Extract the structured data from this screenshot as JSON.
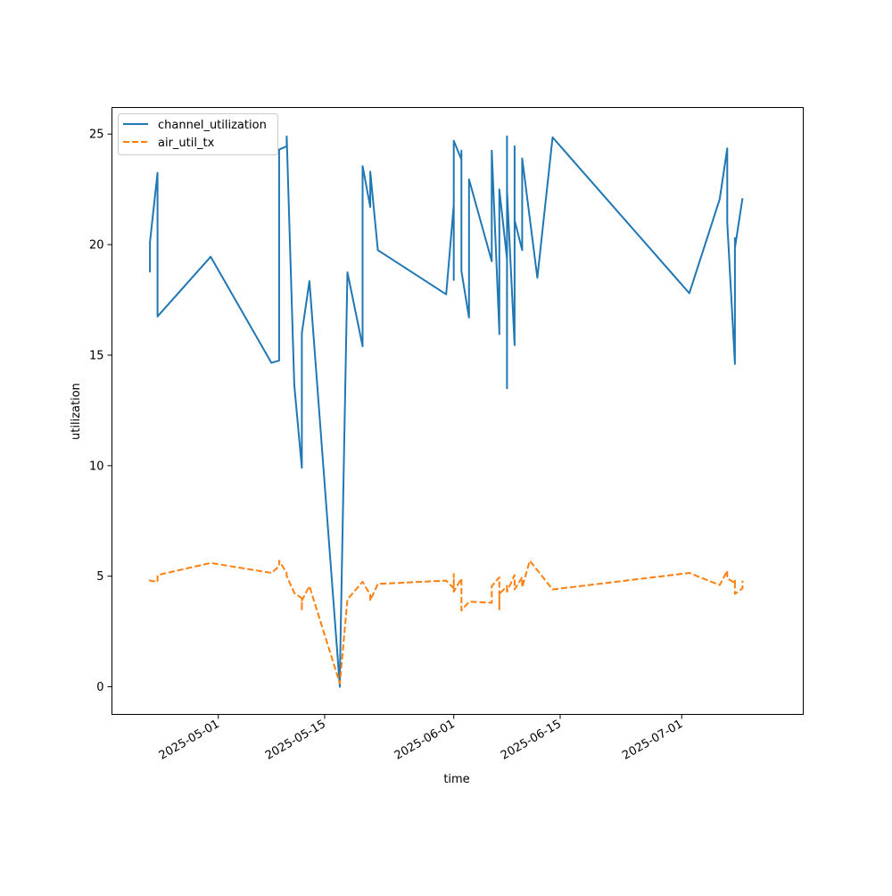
{
  "chart_data": {
    "type": "line",
    "title": "",
    "xlabel": "time",
    "ylabel": "utilization",
    "x_type": "date",
    "xlim": [
      "2025-04-17",
      "2025-07-17"
    ],
    "ylim": [
      -1.25,
      26.2
    ],
    "x_ticks": [
      "2025-05-01",
      "2025-05-15",
      "2025-06-01",
      "2025-06-15",
      "2025-07-01"
    ],
    "x_tick_labels": [
      "2025-05-01",
      "2025-05-15",
      "2025-06-01",
      "2025-06-15",
      "2025-07-01"
    ],
    "y_ticks": [
      0,
      5,
      10,
      15,
      20,
      25
    ],
    "y_tick_labels": [
      "0",
      "5",
      "10",
      "15",
      "20",
      "25"
    ],
    "grid": false,
    "legend_position": "upper-left",
    "series": [
      {
        "name": "channel_utilization",
        "color": "#1f77b4",
        "dash": "solid",
        "points": [
          [
            "2025-04-22",
            18.75
          ],
          [
            "2025-04-22",
            20.1
          ],
          [
            "2025-04-23",
            23.25
          ],
          [
            "2025-04-23",
            16.75
          ],
          [
            "2025-04-30",
            19.45
          ],
          [
            "2025-05-08",
            14.65
          ],
          [
            "2025-05-09",
            14.75
          ],
          [
            "2025-05-09",
            24.3
          ],
          [
            "2025-05-10",
            24.45
          ],
          [
            "2025-05-10",
            24.9
          ],
          [
            "2025-05-11",
            13.65
          ],
          [
            "2025-05-12",
            9.9
          ],
          [
            "2025-05-12",
            14.2
          ],
          [
            "2025-05-12",
            16.0
          ],
          [
            "2025-05-13",
            18.35
          ],
          [
            "2025-05-17",
            0.0
          ],
          [
            "2025-05-17",
            0.5
          ],
          [
            "2025-05-18",
            18.75
          ],
          [
            "2025-05-20",
            15.4
          ],
          [
            "2025-05-20",
            23.55
          ],
          [
            "2025-05-21",
            21.7
          ],
          [
            "2025-05-21",
            23.3
          ],
          [
            "2025-05-22",
            19.75
          ],
          [
            "2025-05-31",
            17.75
          ],
          [
            "2025-06-01",
            21.8
          ],
          [
            "2025-06-01",
            18.4
          ],
          [
            "2025-06-01",
            24.7
          ],
          [
            "2025-06-02",
            23.85
          ],
          [
            "2025-06-02",
            24.25
          ],
          [
            "2025-06-02",
            18.8
          ],
          [
            "2025-06-03",
            16.7
          ],
          [
            "2025-06-03",
            22.95
          ],
          [
            "2025-06-06",
            19.25
          ],
          [
            "2025-06-06",
            24.25
          ],
          [
            "2025-06-07",
            16.05
          ],
          [
            "2025-06-07",
            15.95
          ],
          [
            "2025-06-07",
            22.5
          ],
          [
            "2025-06-07",
            18.5
          ],
          [
            "2025-06-07",
            22.5
          ],
          [
            "2025-06-08",
            19.35
          ],
          [
            "2025-06-08",
            17.0
          ],
          [
            "2025-06-08",
            16.2
          ],
          [
            "2025-06-08",
            24.9
          ],
          [
            "2025-06-08",
            13.5
          ],
          [
            "2025-06-08",
            22.45
          ],
          [
            "2025-06-09",
            15.45
          ],
          [
            "2025-06-09",
            24.45
          ],
          [
            "2025-06-09",
            20.8
          ],
          [
            "2025-06-09",
            21.1
          ],
          [
            "2025-06-10",
            19.75
          ],
          [
            "2025-06-10",
            20.05
          ],
          [
            "2025-06-10",
            23.9
          ],
          [
            "2025-06-12",
            18.5
          ],
          [
            "2025-06-14",
            24.85
          ],
          [
            "2025-07-02",
            17.8
          ],
          [
            "2025-07-06",
            22.05
          ],
          [
            "2025-07-07",
            24.35
          ],
          [
            "2025-07-07",
            21.0
          ],
          [
            "2025-07-08",
            14.6
          ],
          [
            "2025-07-08",
            20.0
          ],
          [
            "2025-07-08",
            20.3
          ],
          [
            "2025-07-08",
            15.05
          ],
          [
            "2025-07-08",
            19.85
          ],
          [
            "2025-07-09",
            22.1
          ]
        ]
      },
      {
        "name": "air_util_tx",
        "color": "#ff7f0e",
        "dash": "dashed",
        "points": [
          [
            "2025-04-22",
            4.85
          ],
          [
            "2025-04-22",
            4.8
          ],
          [
            "2025-04-23",
            4.75
          ],
          [
            "2025-04-23",
            5.05
          ],
          [
            "2025-04-30",
            5.6
          ],
          [
            "2025-05-08",
            5.15
          ],
          [
            "2025-05-09",
            5.45
          ],
          [
            "2025-05-09",
            5.7
          ],
          [
            "2025-05-10",
            5.15
          ],
          [
            "2025-05-10",
            5.0
          ],
          [
            "2025-05-11",
            4.25
          ],
          [
            "2025-05-12",
            4.0
          ],
          [
            "2025-05-12",
            3.45
          ],
          [
            "2025-05-12",
            3.9
          ],
          [
            "2025-05-13",
            4.55
          ],
          [
            "2025-05-17",
            0.15
          ],
          [
            "2025-05-18",
            3.95
          ],
          [
            "2025-05-20",
            4.75
          ],
          [
            "2025-05-21",
            4.15
          ],
          [
            "2025-05-21",
            3.9
          ],
          [
            "2025-05-22",
            4.65
          ],
          [
            "2025-05-31",
            4.8
          ],
          [
            "2025-06-01",
            4.45
          ],
          [
            "2025-06-01",
            5.1
          ],
          [
            "2025-06-01",
            4.3
          ],
          [
            "2025-06-02",
            4.9
          ],
          [
            "2025-06-02",
            3.45
          ],
          [
            "2025-06-03",
            3.85
          ],
          [
            "2025-06-06",
            3.8
          ],
          [
            "2025-06-06",
            4.55
          ],
          [
            "2025-06-07",
            4.95
          ],
          [
            "2025-06-07",
            3.5
          ],
          [
            "2025-06-07",
            4.2
          ],
          [
            "2025-06-08",
            4.55
          ],
          [
            "2025-06-08",
            4.25
          ],
          [
            "2025-06-08",
            4.6
          ],
          [
            "2025-06-08",
            4.3
          ],
          [
            "2025-06-09",
            5.05
          ],
          [
            "2025-06-09",
            4.4
          ],
          [
            "2025-06-10",
            4.95
          ],
          [
            "2025-06-10",
            4.5
          ],
          [
            "2025-06-11",
            5.7
          ],
          [
            "2025-06-14",
            4.4
          ],
          [
            "2025-07-02",
            5.15
          ],
          [
            "2025-07-06",
            4.6
          ],
          [
            "2025-07-07",
            5.25
          ],
          [
            "2025-07-07",
            4.9
          ],
          [
            "2025-07-08",
            4.7
          ],
          [
            "2025-07-08",
            4.8
          ],
          [
            "2025-07-08",
            4.5
          ],
          [
            "2025-07-08",
            4.65
          ],
          [
            "2025-07-08",
            4.2
          ],
          [
            "2025-07-09",
            4.45
          ],
          [
            "2025-07-09",
            4.8
          ]
        ]
      }
    ]
  }
}
